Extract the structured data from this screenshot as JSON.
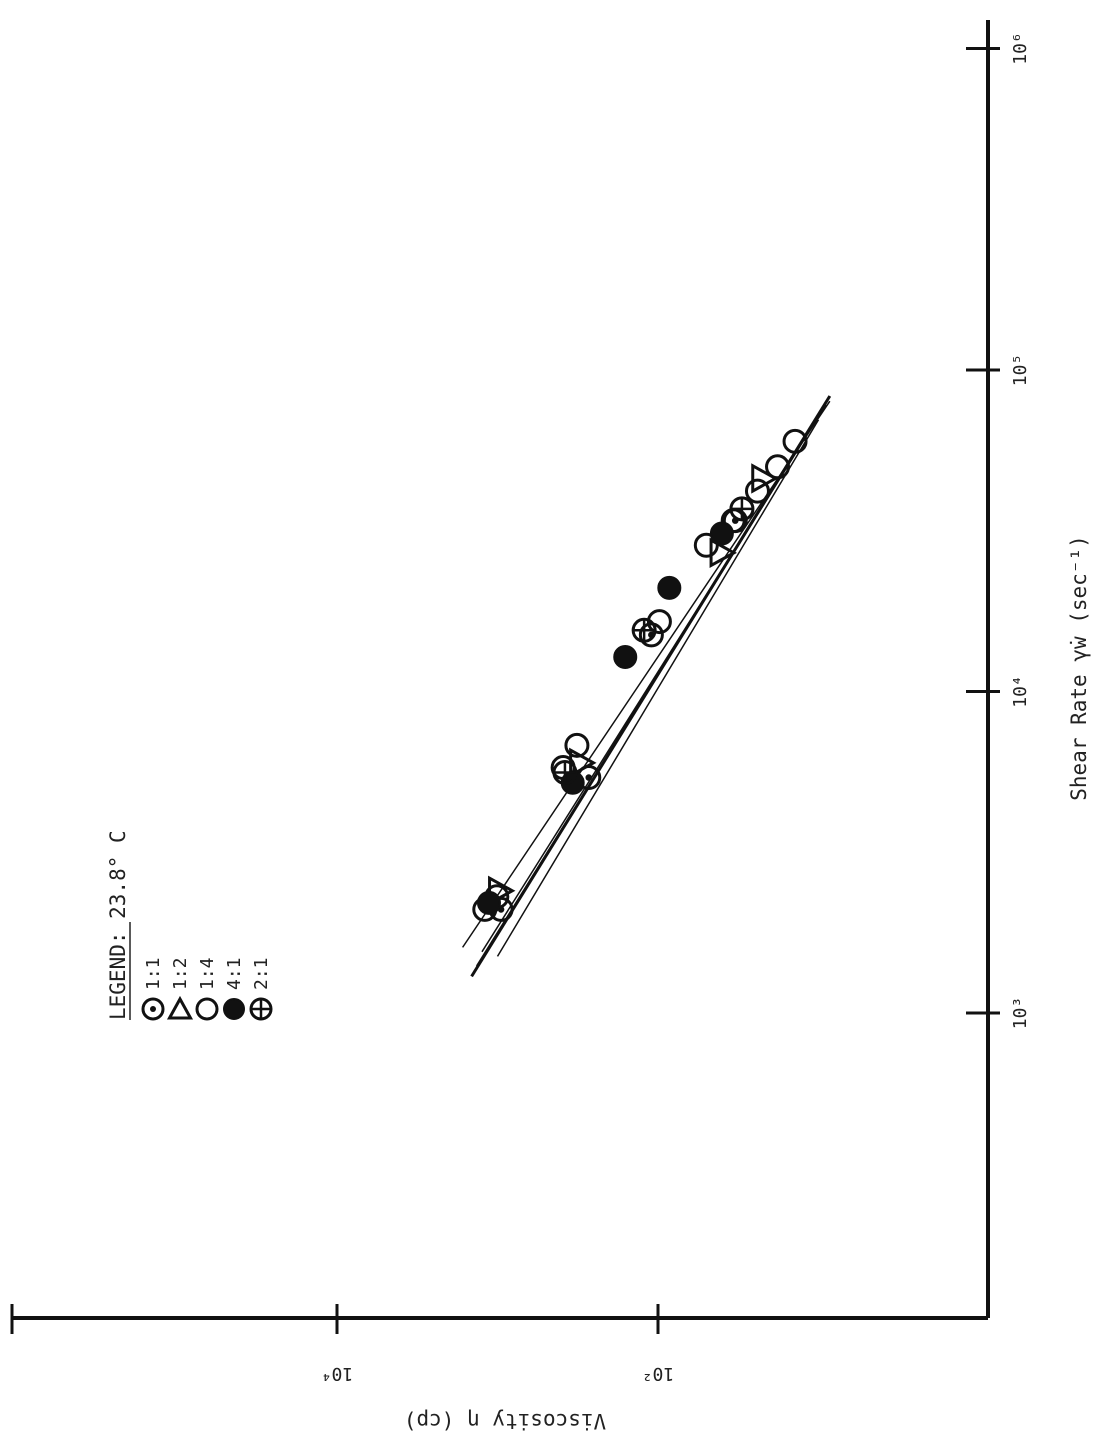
{
  "chart_data": {
    "type": "scatter",
    "title": "",
    "xlabel": "Shear Rate γ̇w (sec⁻¹)",
    "ylabel": "Viscosity η (cp)",
    "x_scale": "log",
    "y_scale": "log",
    "xlim": [
      200,
      1000000
    ],
    "ylim": [
      1,
      100000
    ],
    "x_tick_labels": [
      {
        "value": 1000,
        "text": "10³"
      },
      {
        "value": 10000,
        "text": "10⁴"
      },
      {
        "value": 100000,
        "text": "10⁵"
      },
      {
        "value": 1000000,
        "text": "10⁶"
      }
    ],
    "y_tick_labels": [
      {
        "value": 10000,
        "text": "10⁴"
      },
      {
        "value": 100,
        "text": "10²"
      }
    ],
    "legend": {
      "title": "LEGEND: 23.8° C",
      "position": "top-left",
      "entries": [
        {
          "marker": "dotted-circle",
          "label": "1:1"
        },
        {
          "marker": "triangle",
          "label": "1:2"
        },
        {
          "marker": "open-circle",
          "label": "1:4"
        },
        {
          "marker": "filled-circle",
          "label": "4:1"
        },
        {
          "marker": "crossed-circle",
          "label": "2:1"
        }
      ]
    },
    "fit_lines": [
      {
        "x": [
          1300,
          83000
        ],
        "y": [
          1450,
          8.5
        ],
        "width": 3
      },
      {
        "x": [
          1500,
          70000
        ],
        "y": [
          1000,
          10
        ],
        "width": 1.5
      },
      {
        "x": [
          1400,
          78000
        ],
        "y": [
          1350,
          9
        ],
        "width": 1.5
      },
      {
        "x": [
          1550,
          62000
        ],
        "y": [
          1250,
          12
        ],
        "width": 1.5
      },
      {
        "x": [
          1600,
          80000
        ],
        "y": [
          1650,
          8.5
        ],
        "width": 1.5
      }
    ],
    "series": [
      {
        "name": "1:1",
        "marker": "dotted-circle",
        "x": [
          2100,
          5400,
          15000,
          34000
        ],
        "y": [
          950,
          270,
          110,
          33
        ]
      },
      {
        "name": "1:2",
        "marker": "triangle",
        "x": [
          2400,
          6000,
          27000,
          46000
        ],
        "y": [
          960,
          300,
          40,
          22
        ]
      },
      {
        "name": "1:4",
        "marker": "open-circle",
        "x": [
          2100,
          2300,
          5800,
          6800,
          16500,
          28500,
          34000,
          42000,
          50000,
          60000
        ],
        "y": [
          1200,
          1010,
          390,
          320,
          98,
          50,
          34,
          24,
          18,
          14
        ]
      },
      {
        "name": "4:1",
        "marker": "filled-circle",
        "x": [
          2200,
          5200,
          12800,
          21000,
          31000
        ],
        "y": [
          1130,
          340,
          160,
          85,
          40
        ]
      },
      {
        "name": "2:1",
        "marker": "crossed-circle",
        "x": [
          5600,
          15500,
          37000
        ],
        "y": [
          380,
          122,
          30
        ]
      }
    ]
  }
}
